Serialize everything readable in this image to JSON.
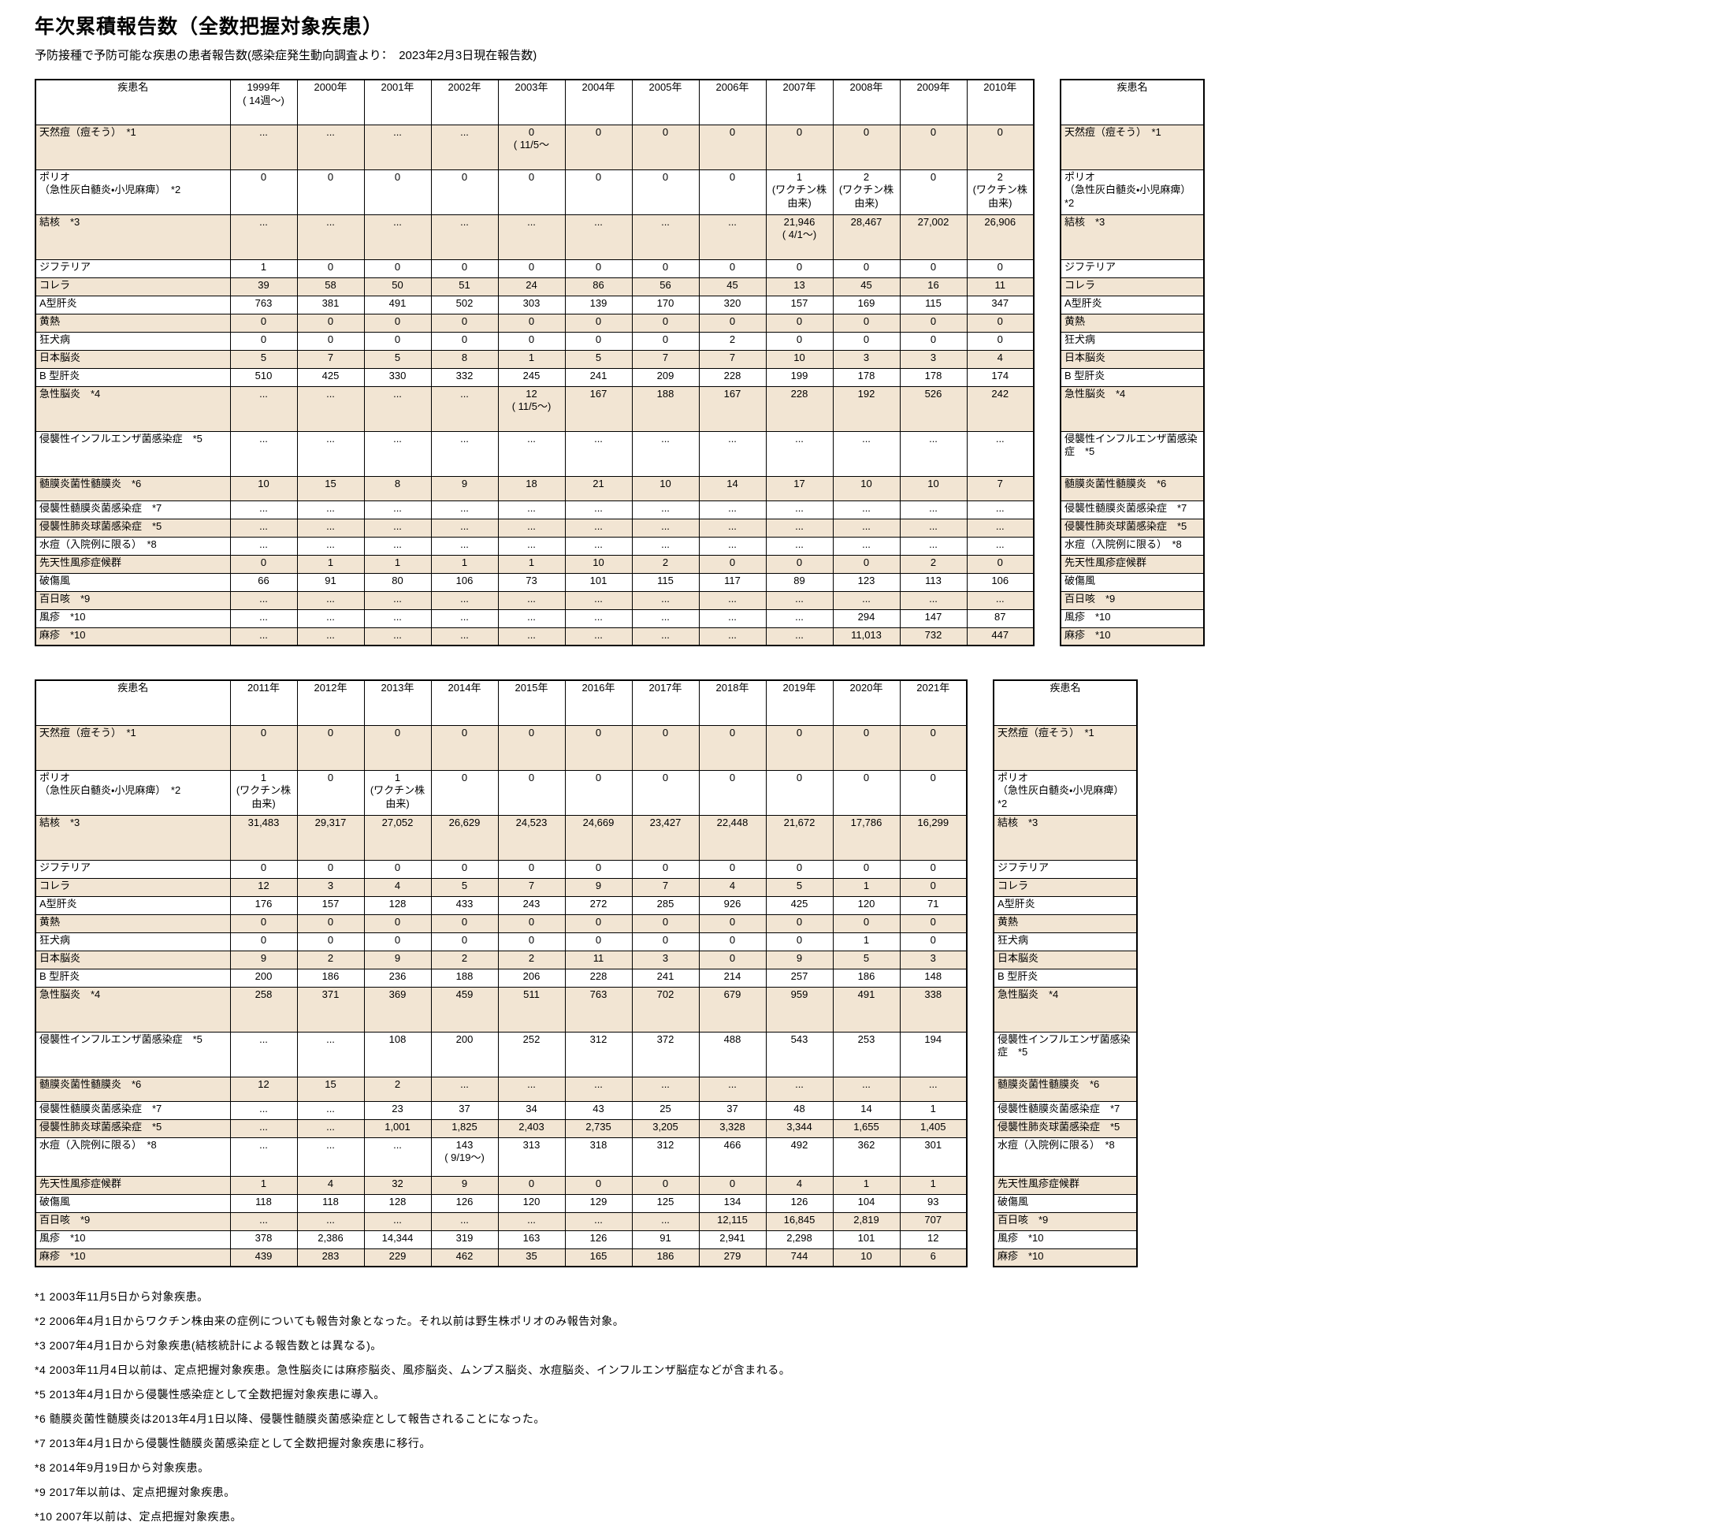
{
  "title": "年次累積報告数（全数把握対象疾患）",
  "subtitle": "予防接種で予防可能な疾患の患者報告数(感染症発生動向調査より：　2023年2月3日現在報告数)",
  "colors": {
    "row_shade": "#F2E5D3",
    "border": "#000000",
    "background": "#FFFFFF"
  },
  "tables": [
    {
      "period": "1999-2010",
      "name_header": "疾患名",
      "year_headers": [
        "1999年\n( 14週～)",
        "2000年",
        "2001年",
        "2002年",
        "2003年",
        "2004年",
        "2005年",
        "2006年",
        "2007年",
        "2008年",
        "2009年",
        "2010年"
      ],
      "rows": [
        {
          "disease": "天然痘（痘そう）　*1",
          "shaded": true,
          "h": "tall",
          "values": [
            "...",
            "...",
            "...",
            "...",
            "0\n( 11/5～",
            "0",
            "0",
            "0",
            "0",
            "0",
            "0",
            "0"
          ]
        },
        {
          "disease": "ポリオ\n（急性灰白髄炎・小児麻痺）　*2",
          "shaded": false,
          "h": "tall",
          "values": [
            "0",
            "0",
            "0",
            "0",
            "0",
            "0",
            "0",
            "0",
            "1\n(ワクチン株由来)",
            "2\n(ワクチン株由来)",
            "0",
            "2\n(ワクチン株由来)"
          ]
        },
        {
          "disease": "結核　*3",
          "shaded": true,
          "h": "tall",
          "values": [
            "...",
            "...",
            "...",
            "...",
            "...",
            "...",
            "...",
            "...",
            "21,946\n( 4/1～)",
            "28,467",
            "27,002",
            "26,906"
          ]
        },
        {
          "disease": "ジフテリア",
          "shaded": false,
          "h": "single",
          "values": [
            "1",
            "0",
            "0",
            "0",
            "0",
            "0",
            "0",
            "0",
            "0",
            "0",
            "0",
            "0"
          ]
        },
        {
          "disease": "コレラ",
          "shaded": true,
          "h": "single",
          "values": [
            "39",
            "58",
            "50",
            "51",
            "24",
            "86",
            "56",
            "45",
            "13",
            "45",
            "16",
            "11"
          ]
        },
        {
          "disease": "A型肝炎",
          "shaded": false,
          "h": "single",
          "values": [
            "763",
            "381",
            "491",
            "502",
            "303",
            "139",
            "170",
            "320",
            "157",
            "169",
            "115",
            "347"
          ]
        },
        {
          "disease": "黄熱",
          "shaded": true,
          "h": "single",
          "values": [
            "0",
            "0",
            "0",
            "0",
            "0",
            "0",
            "0",
            "0",
            "0",
            "0",
            "0",
            "0"
          ]
        },
        {
          "disease": "狂犬病",
          "shaded": false,
          "h": "single",
          "values": [
            "0",
            "0",
            "0",
            "0",
            "0",
            "0",
            "0",
            "2",
            "0",
            "0",
            "0",
            "0"
          ]
        },
        {
          "disease": "日本脳炎",
          "shaded": true,
          "h": "single",
          "values": [
            "5",
            "7",
            "5",
            "8",
            "1",
            "5",
            "7",
            "7",
            "10",
            "3",
            "3",
            "4"
          ]
        },
        {
          "disease": "B 型肝炎",
          "shaded": false,
          "h": "single",
          "values": [
            "510",
            "425",
            "330",
            "332",
            "245",
            "241",
            "209",
            "228",
            "199",
            "178",
            "178",
            "174"
          ]
        },
        {
          "disease": "急性脳炎　*4",
          "shaded": true,
          "h": "tall",
          "values": [
            "...",
            "...",
            "...",
            "...",
            "12\n( 11/5～)",
            "167",
            "188",
            "167",
            "228",
            "192",
            "526",
            "242"
          ]
        },
        {
          "disease": "侵襲性インフルエンザ菌感染症　*5",
          "shaded": false,
          "h": "tall",
          "values": [
            "...",
            "...",
            "...",
            "...",
            "...",
            "...",
            "...",
            "...",
            "...",
            "...",
            "...",
            "..."
          ]
        },
        {
          "disease": "髄膜炎菌性髄膜炎　*6",
          "shaded": true,
          "h": "mid",
          "values": [
            "10",
            "15",
            "8",
            "9",
            "18",
            "21",
            "10",
            "14",
            "17",
            "10",
            "10",
            "7"
          ]
        },
        {
          "disease": "侵襲性髄膜炎菌感染症　*7",
          "shaded": false,
          "h": "single",
          "values": [
            "...",
            "...",
            "...",
            "...",
            "...",
            "...",
            "...",
            "...",
            "...",
            "...",
            "...",
            "..."
          ]
        },
        {
          "disease": "侵襲性肺炎球菌感染症　*5",
          "shaded": true,
          "h": "single",
          "values": [
            "...",
            "...",
            "...",
            "...",
            "...",
            "...",
            "...",
            "...",
            "...",
            "...",
            "...",
            "..."
          ]
        },
        {
          "disease": "水痘（入院例に限る）　*8",
          "shaded": false,
          "h": "single",
          "values": [
            "...",
            "...",
            "...",
            "...",
            "...",
            "...",
            "...",
            "...",
            "...",
            "...",
            "...",
            "..."
          ]
        },
        {
          "disease": "先天性風疹症候群",
          "shaded": true,
          "h": "single",
          "values": [
            "0",
            "1",
            "1",
            "1",
            "1",
            "10",
            "2",
            "0",
            "0",
            "0",
            "2",
            "0"
          ]
        },
        {
          "disease": "破傷風",
          "shaded": false,
          "h": "single",
          "values": [
            "66",
            "91",
            "80",
            "106",
            "73",
            "101",
            "115",
            "117",
            "89",
            "123",
            "113",
            "106"
          ]
        },
        {
          "disease": "百日咳　*9",
          "shaded": true,
          "h": "single",
          "values": [
            "...",
            "...",
            "...",
            "...",
            "...",
            "...",
            "...",
            "...",
            "...",
            "...",
            "...",
            "..."
          ]
        },
        {
          "disease": "風疹　*10",
          "shaded": false,
          "h": "single",
          "values": [
            "...",
            "...",
            "...",
            "...",
            "...",
            "...",
            "...",
            "...",
            "...",
            "294",
            "147",
            "87"
          ]
        },
        {
          "disease": "麻疹　*10",
          "shaded": true,
          "h": "single",
          "values": [
            "...",
            "...",
            "...",
            "...",
            "...",
            "...",
            "...",
            "...",
            "...",
            "11,013",
            "732",
            "447"
          ]
        }
      ]
    },
    {
      "period": "2011-2021",
      "name_header": "疾患名",
      "year_headers": [
        "2011年",
        "2012年",
        "2013年",
        "2014年",
        "2015年",
        "2016年",
        "2017年",
        "2018年",
        "2019年",
        "2020年",
        "2021年"
      ],
      "rows": [
        {
          "disease": "天然痘（痘そう）　*1",
          "shaded": true,
          "h": "tall",
          "values": [
            "0",
            "0",
            "0",
            "0",
            "0",
            "0",
            "0",
            "0",
            "0",
            "0",
            "0"
          ]
        },
        {
          "disease": "ポリオ\n（急性灰白髄炎・小児麻痺）　*2",
          "shaded": false,
          "h": "tall",
          "values": [
            "1\n(ワクチン株由来)",
            "0",
            "1\n(ワクチン株由来)",
            "0",
            "0",
            "0",
            "0",
            "0",
            "0",
            "0",
            "0"
          ]
        },
        {
          "disease": "結核　*3",
          "shaded": true,
          "h": "tall",
          "values": [
            "31,483",
            "29,317",
            "27,052",
            "26,629",
            "24,523",
            "24,669",
            "23,427",
            "22,448",
            "21,672",
            "17,786",
            "16,299"
          ]
        },
        {
          "disease": "ジフテリア",
          "shaded": false,
          "h": "single",
          "values": [
            "0",
            "0",
            "0",
            "0",
            "0",
            "0",
            "0",
            "0",
            "0",
            "0",
            "0"
          ]
        },
        {
          "disease": "コレラ",
          "shaded": true,
          "h": "single",
          "values": [
            "12",
            "3",
            "4",
            "5",
            "7",
            "9",
            "7",
            "4",
            "5",
            "1",
            "0"
          ]
        },
        {
          "disease": "A型肝炎",
          "shaded": false,
          "h": "single",
          "values": [
            "176",
            "157",
            "128",
            "433",
            "243",
            "272",
            "285",
            "926",
            "425",
            "120",
            "71"
          ]
        },
        {
          "disease": "黄熱",
          "shaded": true,
          "h": "single",
          "values": [
            "0",
            "0",
            "0",
            "0",
            "0",
            "0",
            "0",
            "0",
            "0",
            "0",
            "0"
          ]
        },
        {
          "disease": "狂犬病",
          "shaded": false,
          "h": "single",
          "values": [
            "0",
            "0",
            "0",
            "0",
            "0",
            "0",
            "0",
            "0",
            "0",
            "1",
            "0"
          ]
        },
        {
          "disease": "日本脳炎",
          "shaded": true,
          "h": "single",
          "values": [
            "9",
            "2",
            "9",
            "2",
            "2",
            "11",
            "3",
            "0",
            "9",
            "5",
            "3"
          ]
        },
        {
          "disease": "B 型肝炎",
          "shaded": false,
          "h": "single",
          "values": [
            "200",
            "186",
            "236",
            "188",
            "206",
            "228",
            "241",
            "214",
            "257",
            "186",
            "148"
          ]
        },
        {
          "disease": "急性脳炎　*4",
          "shaded": true,
          "h": "tall",
          "values": [
            "258",
            "371",
            "369",
            "459",
            "511",
            "763",
            "702",
            "679",
            "959",
            "491",
            "338"
          ]
        },
        {
          "disease": "侵襲性インフルエンザ菌感染症　*5",
          "shaded": false,
          "h": "tall",
          "values": [
            "...",
            "...",
            "108",
            "200",
            "252",
            "312",
            "372",
            "488",
            "543",
            "253",
            "194"
          ]
        },
        {
          "disease": "髄膜炎菌性髄膜炎　*6",
          "shaded": true,
          "h": "mid",
          "values": [
            "12",
            "15",
            "2",
            "...",
            "...",
            "...",
            "...",
            "...",
            "...",
            "...",
            "..."
          ]
        },
        {
          "disease": "侵襲性髄膜炎菌感染症　*7",
          "shaded": false,
          "h": "single",
          "values": [
            "...",
            "...",
            "23",
            "37",
            "34",
            "43",
            "25",
            "37",
            "48",
            "14",
            "1"
          ]
        },
        {
          "disease": "侵襲性肺炎球菌感染症　*5",
          "shaded": true,
          "h": "single",
          "values": [
            "...",
            "...",
            "1,001",
            "1,825",
            "2,403",
            "2,735",
            "3,205",
            "3,328",
            "3,344",
            "1,655",
            "1,405"
          ]
        },
        {
          "disease": "水痘（入院例に限る）　*8",
          "shaded": false,
          "h": "tall2",
          "values": [
            "...",
            "...",
            "...",
            "143\n( 9/19～)",
            "313",
            "318",
            "312",
            "466",
            "492",
            "362",
            "301"
          ]
        },
        {
          "disease": "先天性風疹症候群",
          "shaded": true,
          "h": "single",
          "values": [
            "1",
            "4",
            "32",
            "9",
            "0",
            "0",
            "0",
            "0",
            "4",
            "1",
            "1"
          ]
        },
        {
          "disease": "破傷風",
          "shaded": false,
          "h": "single",
          "values": [
            "118",
            "118",
            "128",
            "126",
            "120",
            "129",
            "125",
            "134",
            "126",
            "104",
            "93"
          ]
        },
        {
          "disease": "百日咳　*9",
          "shaded": true,
          "h": "single",
          "values": [
            "...",
            "...",
            "...",
            "...",
            "...",
            "...",
            "...",
            "12,115",
            "16,845",
            "2,819",
            "707"
          ]
        },
        {
          "disease": "風疹　*10",
          "shaded": false,
          "h": "single",
          "values": [
            "378",
            "2,386",
            "14,344",
            "319",
            "163",
            "126",
            "91",
            "2,941",
            "2,298",
            "101",
            "12"
          ]
        },
        {
          "disease": "麻疹　*10",
          "shaded": true,
          "h": "single",
          "values": [
            "439",
            "283",
            "229",
            "462",
            "35",
            "165",
            "186",
            "279",
            "744",
            "10",
            "6"
          ]
        }
      ]
    }
  ],
  "footnotes": [
    "*1 2003年11月5日から対象疾患。",
    "*2 2006年4月1日からワクチン株由来の症例についても報告対象となった。それ以前は野生株ポリオのみ報告対象。",
    "*3 2007年4月1日から対象疾患(結核統計による報告数とは異なる)。",
    "*4 2003年11月4日以前は、定点把握対象疾患。急性脳炎には麻疹脳炎、風疹脳炎、ムンプス脳炎、水痘脳炎、インフルエンザ脳症などが含まれる。",
    "*5 2013年4月1日から侵襲性感染症として全数把握対象疾患に導入。",
    "*6 髄膜炎菌性髄膜炎は2013年4月1日以降、侵襲性髄膜炎菌感染症として報告されることになった。",
    "*7 2013年4月1日から侵襲性髄膜炎菌感染症として全数把握対象疾患に移行。",
    "*8 2014年9月19日から対象疾患。",
    "*9 2017年以前は、定点把握対象疾患。",
    "*10 2007年以前は、定点把握対象疾患。"
  ]
}
